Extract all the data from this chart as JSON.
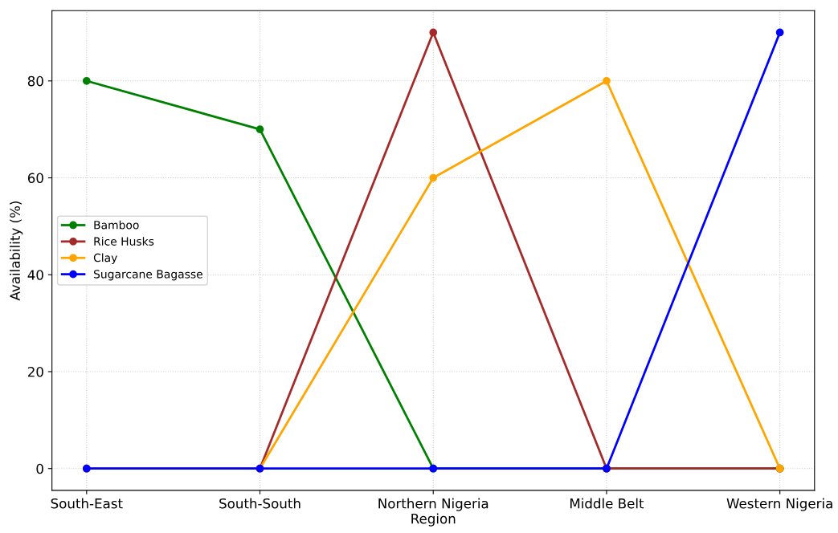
{
  "chart_data": {
    "type": "line",
    "xlabel": "Region",
    "ylabel": "Availability (%)",
    "categories": [
      "South-East",
      "South-South",
      "Northern Nigeria",
      "Middle Belt",
      "Western Nigeria"
    ],
    "series": [
      {
        "name": "Bamboo",
        "color": "#008000",
        "values": [
          80,
          70,
          0,
          0,
          0
        ]
      },
      {
        "name": "Rice Husks",
        "color": "#a52a2a",
        "values": [
          0,
          0,
          90,
          0,
          0
        ]
      },
      {
        "name": "Clay",
        "color": "#ffa500",
        "values": [
          0,
          0,
          60,
          80,
          0
        ]
      },
      {
        "name": "Sugarcane Bagasse",
        "color": "#0000ff",
        "values": [
          0,
          0,
          0,
          0,
          90
        ]
      }
    ],
    "ylim": [
      -4.5,
      94.5
    ],
    "yticks": [
      0,
      20,
      40,
      60,
      80
    ],
    "grid": true,
    "legend": "center left",
    "marker": "circle",
    "line_style": "solid"
  }
}
